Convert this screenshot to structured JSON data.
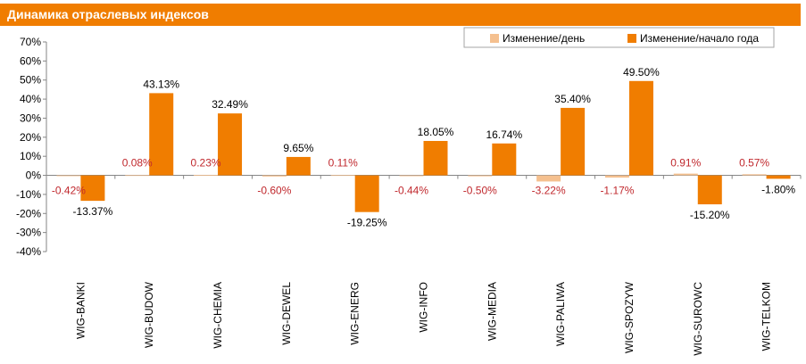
{
  "colors": {
    "accent": "#f07d00",
    "day": "#f5c08f",
    "year": "#f07d00",
    "day_label": "#c0282d"
  },
  "chart_data": {
    "type": "bar",
    "title": "Динамика отраслевых индексов",
    "categories": [
      "WIG-BANKI",
      "WIG-BUDOW",
      "WIG-CHEMIA",
      "WIG-DEWEL",
      "WIG-ENERG",
      "WIG-INFO",
      "WIG-MEDIA",
      "WIG-PALIWA",
      "WIG-SPOZYW",
      "WIG-SUROWC",
      "WIG-TELKOM"
    ],
    "series": [
      {
        "name": "Изменение/день",
        "values": [
          -0.42,
          0.08,
          0.23,
          -0.6,
          0.11,
          -0.44,
          -0.5,
          -3.22,
          -1.17,
          0.91,
          0.57
        ],
        "labels": [
          "-0.42%",
          "0.08%",
          "0.23%",
          "-0.60%",
          "0.11%",
          "-0.44%",
          "-0.50%",
          "-3.22%",
          "-1.17%",
          "0.91%",
          "0.57%"
        ]
      },
      {
        "name": "Изменение/начало года",
        "values": [
          -13.37,
          43.13,
          32.49,
          9.65,
          -19.25,
          18.05,
          16.74,
          35.4,
          49.5,
          -15.2,
          -1.8
        ],
        "labels": [
          "-13.37%",
          "43.13%",
          "32.49%",
          "9.65%",
          "-19.25%",
          "18.05%",
          "16.74%",
          "35.40%",
          "49.50%",
          "-15.20%",
          "-1.80%"
        ]
      }
    ],
    "ylim": [
      -40,
      70
    ],
    "yticks": [
      70,
      60,
      50,
      40,
      30,
      20,
      10,
      0,
      -10,
      -20,
      -30,
      -40
    ],
    "ytick_labels": [
      "70%",
      "60%",
      "50%",
      "40%",
      "30%",
      "20%",
      "10%",
      "0%",
      "-10%",
      "-20%",
      "-30%",
      "-40%"
    ],
    "xlabel": "",
    "ylabel": "",
    "grid": false,
    "legend": "top-right"
  }
}
